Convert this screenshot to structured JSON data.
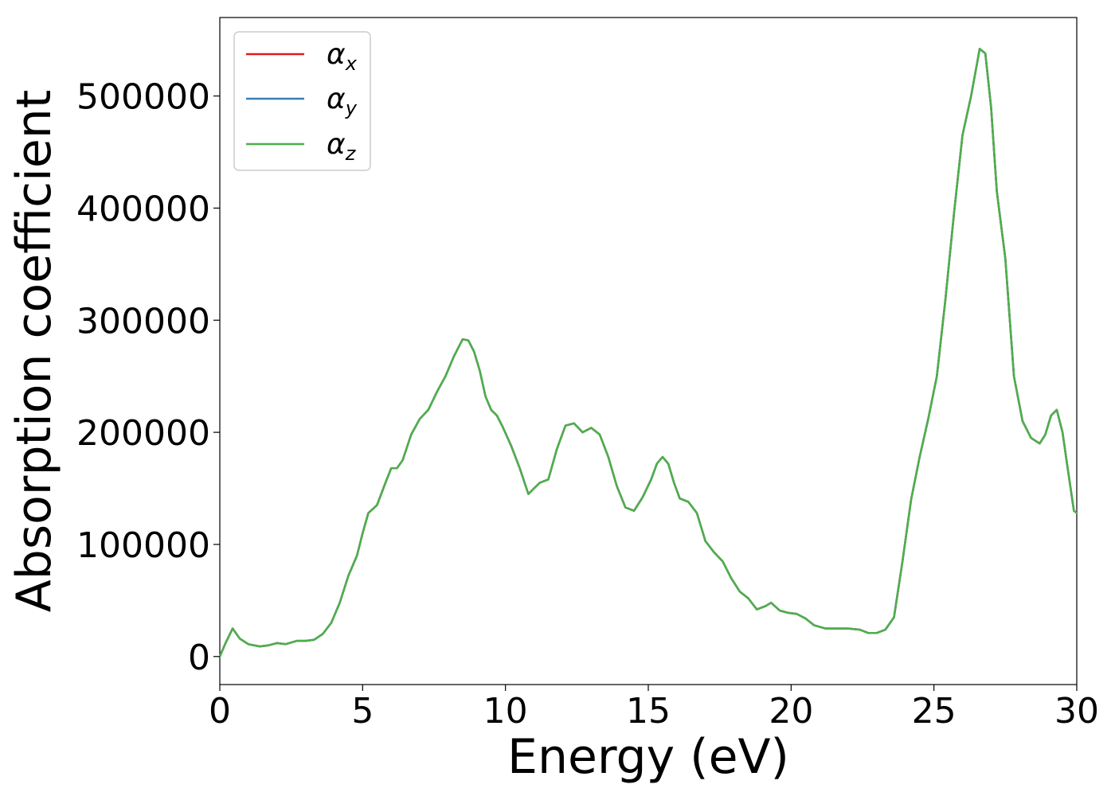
{
  "chart_data": {
    "type": "line",
    "title": "",
    "xlabel": "Energy (eV)",
    "ylabel": "Absorption coefficient",
    "xlim": [
      0,
      30
    ],
    "ylim": [
      -25000,
      570000
    ],
    "xticks": [
      0,
      5,
      10,
      15,
      20,
      25,
      30
    ],
    "xtick_labels": [
      "0",
      "5",
      "10",
      "15",
      "20",
      "25",
      "30"
    ],
    "yticks": [
      0,
      100000,
      200000,
      300000,
      400000,
      500000
    ],
    "ytick_labels": [
      "0",
      "100000",
      "200000",
      "300000",
      "400000",
      "500000"
    ],
    "grid": false,
    "legend_position": "top-left",
    "x": [
      0.0,
      0.2,
      0.45,
      0.7,
      1.0,
      1.4,
      1.7,
      2.0,
      2.3,
      2.7,
      3.0,
      3.3,
      3.6,
      3.9,
      4.2,
      4.5,
      4.8,
      5.0,
      5.2,
      5.5,
      5.8,
      6.0,
      6.2,
      6.4,
      6.7,
      7.0,
      7.3,
      7.6,
      7.9,
      8.2,
      8.5,
      8.7,
      8.9,
      9.1,
      9.3,
      9.5,
      9.7,
      9.9,
      10.2,
      10.5,
      10.8,
      11.0,
      11.2,
      11.5,
      11.8,
      12.1,
      12.4,
      12.7,
      13.0,
      13.3,
      13.6,
      13.9,
      14.2,
      14.5,
      14.8,
      15.1,
      15.3,
      15.5,
      15.7,
      15.9,
      16.1,
      16.4,
      16.7,
      17.0,
      17.3,
      17.6,
      17.9,
      18.2,
      18.5,
      18.8,
      19.1,
      19.3,
      19.6,
      19.9,
      20.2,
      20.5,
      20.8,
      21.2,
      21.6,
      22.0,
      22.4,
      22.7,
      23.0,
      23.3,
      23.6,
      23.9,
      24.2,
      24.5,
      24.8,
      25.1,
      25.4,
      25.7,
      26.0,
      26.3,
      26.6,
      26.8,
      27.0,
      27.2,
      27.5,
      27.8,
      28.1,
      28.4,
      28.7,
      28.9,
      29.1,
      29.3,
      29.5,
      29.7,
      29.9,
      30.0
    ],
    "series": [
      {
        "name": "αx",
        "color": "#e41a1c",
        "values": [
          0,
          12000,
          25000,
          16000,
          11000,
          9000,
          10000,
          12000,
          11000,
          14000,
          14000,
          15000,
          20000,
          30000,
          48000,
          72000,
          90000,
          110000,
          128000,
          135000,
          155000,
          168000,
          168000,
          175000,
          198000,
          212000,
          220000,
          236000,
          250000,
          268000,
          283000,
          282000,
          272000,
          255000,
          232000,
          220000,
          215000,
          205000,
          188000,
          168000,
          145000,
          150000,
          155000,
          158000,
          185000,
          206000,
          208000,
          200000,
          204000,
          198000,
          178000,
          152000,
          133000,
          130000,
          142000,
          158000,
          172000,
          178000,
          172000,
          155000,
          141000,
          138000,
          128000,
          103000,
          93000,
          85000,
          70000,
          58000,
          52000,
          42000,
          45000,
          48000,
          41000,
          39000,
          38000,
          34000,
          28000,
          25000,
          25000,
          25000,
          24000,
          21000,
          21000,
          24000,
          35000,
          85000,
          140000,
          178000,
          212000,
          250000,
          318000,
          395000,
          465000,
          500000,
          542000,
          538000,
          490000,
          415000,
          355000,
          250000,
          210000,
          195000,
          190000,
          198000,
          215000,
          220000,
          200000,
          165000,
          130000,
          128000
        ]
      },
      {
        "name": "αy",
        "color": "#377eb8",
        "values": [
          0,
          12000,
          25000,
          16000,
          11000,
          9000,
          10000,
          12000,
          11000,
          14000,
          14000,
          15000,
          20000,
          30000,
          48000,
          72000,
          90000,
          110000,
          128000,
          135000,
          155000,
          168000,
          168000,
          175000,
          198000,
          212000,
          220000,
          236000,
          250000,
          268000,
          283000,
          282000,
          272000,
          255000,
          232000,
          220000,
          215000,
          205000,
          188000,
          168000,
          145000,
          150000,
          155000,
          158000,
          185000,
          206000,
          208000,
          200000,
          204000,
          198000,
          178000,
          152000,
          133000,
          130000,
          142000,
          158000,
          172000,
          178000,
          172000,
          155000,
          141000,
          138000,
          128000,
          103000,
          93000,
          85000,
          70000,
          58000,
          52000,
          42000,
          45000,
          48000,
          41000,
          39000,
          38000,
          34000,
          28000,
          25000,
          25000,
          25000,
          24000,
          21000,
          21000,
          24000,
          35000,
          85000,
          140000,
          178000,
          212000,
          250000,
          318000,
          395000,
          465000,
          500000,
          542000,
          538000,
          490000,
          415000,
          355000,
          250000,
          210000,
          195000,
          190000,
          198000,
          215000,
          220000,
          200000,
          165000,
          130000,
          128000
        ]
      },
      {
        "name": "αz",
        "color": "#4daf4a",
        "values": [
          0,
          12000,
          25000,
          16000,
          11000,
          9000,
          10000,
          12000,
          11000,
          14000,
          14000,
          15000,
          20000,
          30000,
          48000,
          72000,
          90000,
          110000,
          128000,
          135000,
          155000,
          168000,
          168000,
          175000,
          198000,
          212000,
          220000,
          236000,
          250000,
          268000,
          283000,
          282000,
          272000,
          255000,
          232000,
          220000,
          215000,
          205000,
          188000,
          168000,
          145000,
          150000,
          155000,
          158000,
          185000,
          206000,
          208000,
          200000,
          204000,
          198000,
          178000,
          152000,
          133000,
          130000,
          142000,
          158000,
          172000,
          178000,
          172000,
          155000,
          141000,
          138000,
          128000,
          103000,
          93000,
          85000,
          70000,
          58000,
          52000,
          42000,
          45000,
          48000,
          41000,
          39000,
          38000,
          34000,
          28000,
          25000,
          25000,
          25000,
          24000,
          21000,
          21000,
          24000,
          35000,
          85000,
          140000,
          178000,
          212000,
          250000,
          318000,
          395000,
          465000,
          500000,
          542000,
          538000,
          490000,
          415000,
          355000,
          250000,
          210000,
          195000,
          190000,
          198000,
          215000,
          220000,
          200000,
          165000,
          130000,
          128000
        ]
      }
    ],
    "legend": [
      {
        "base": "α",
        "sub": "x",
        "color": "#e41a1c"
      },
      {
        "base": "α",
        "sub": "y",
        "color": "#377eb8"
      },
      {
        "base": "α",
        "sub": "z",
        "color": "#4daf4a"
      }
    ]
  }
}
